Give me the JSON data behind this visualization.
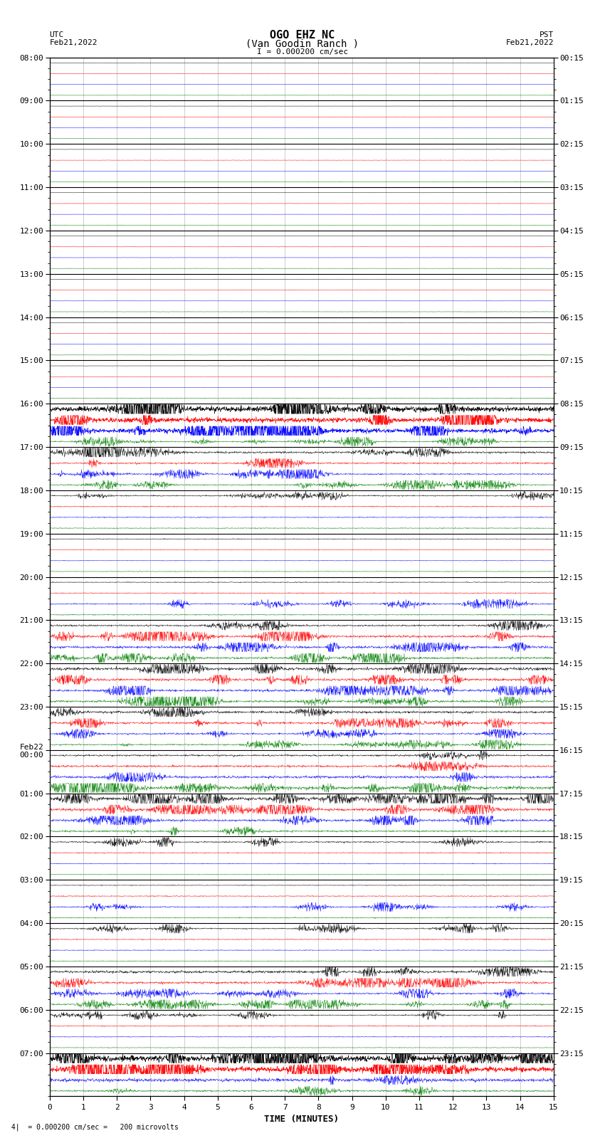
{
  "title_line1": "OGO EHZ NC",
  "title_line2": "(Van Goodin Ranch )",
  "title_line3": "I = 0.000200 cm/sec",
  "left_label": "UTC",
  "left_date": "Feb21,2022",
  "right_label": "PST",
  "right_date": "Feb21,2022",
  "xlabel": "TIME (MINUTES)",
  "bottom_text": "= 0.000200 cm/sec =   200 microvolts",
  "xlim": [
    0,
    15
  ],
  "utc_hour_labels": [
    "08:00",
    "09:00",
    "10:00",
    "11:00",
    "12:00",
    "13:00",
    "14:00",
    "15:00",
    "16:00",
    "17:00",
    "18:00",
    "19:00",
    "20:00",
    "21:00",
    "22:00",
    "23:00",
    "Feb22\n00:00",
    "01:00",
    "02:00",
    "03:00",
    "04:00",
    "05:00",
    "06:00",
    "07:00"
  ],
  "pst_hour_labels": [
    "00:15",
    "01:15",
    "02:15",
    "03:15",
    "04:15",
    "05:15",
    "06:15",
    "07:15",
    "08:15",
    "09:15",
    "10:15",
    "11:15",
    "12:15",
    "13:15",
    "14:15",
    "15:15",
    "16:15",
    "17:15",
    "18:15",
    "19:15",
    "20:15",
    "21:15",
    "22:15",
    "23:15"
  ],
  "n_traces": 96,
  "traces_per_hour": 4,
  "n_hours": 24,
  "trace_colors": [
    "black",
    "red",
    "blue",
    "green"
  ],
  "background_color": "#ffffff",
  "grid_color": "#aaaaaa",
  "hour_line_color": "#000000",
  "title_fontsize": 10,
  "tick_fontsize": 8,
  "xlabel_fontsize": 9,
  "amplitude_map": [
    0.02,
    0.03,
    0.02,
    0.03,
    0.02,
    0.03,
    0.02,
    0.03,
    0.02,
    0.03,
    0.02,
    0.03,
    0.02,
    0.03,
    0.02,
    0.03,
    0.02,
    0.03,
    0.02,
    0.03,
    0.02,
    0.03,
    0.02,
    0.03,
    0.02,
    0.03,
    0.02,
    0.03,
    0.02,
    0.03,
    0.02,
    0.05,
    0.45,
    0.4,
    0.35,
    0.1,
    0.18,
    0.15,
    0.12,
    0.1,
    0.1,
    0.08,
    0.08,
    0.07,
    0.06,
    0.05,
    0.05,
    0.05,
    0.07,
    0.08,
    0.1,
    0.08,
    0.15,
    0.2,
    0.22,
    0.18,
    0.25,
    0.22,
    0.2,
    0.18,
    0.2,
    0.18,
    0.15,
    0.12,
    0.15,
    0.18,
    0.22,
    0.28,
    0.3,
    0.25,
    0.2,
    0.15,
    0.12,
    0.08,
    0.06,
    0.05,
    0.06,
    0.08,
    0.1,
    0.08,
    0.1,
    0.08,
    0.07,
    0.06,
    0.22,
    0.2,
    0.15,
    0.12,
    0.1,
    0.08,
    0.06,
    0.05,
    0.5,
    0.45,
    0.3,
    0.15
  ]
}
